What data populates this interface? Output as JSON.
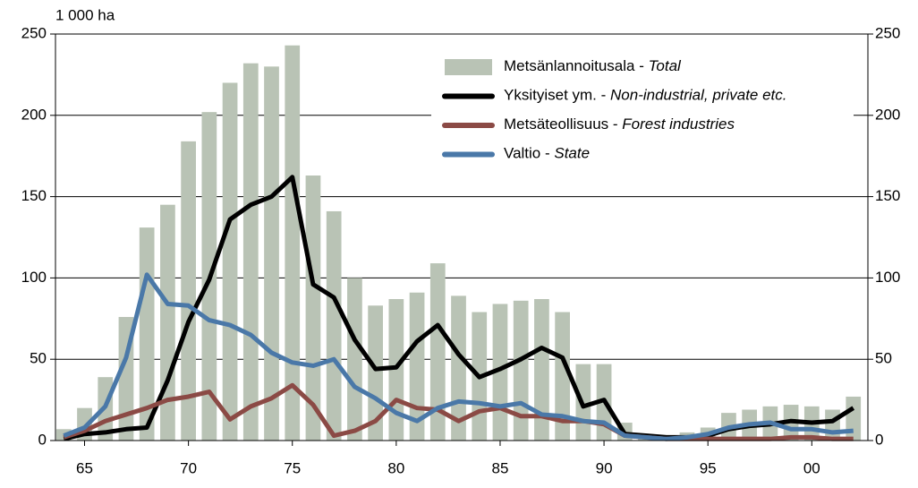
{
  "chart_data": {
    "type": "bar-line",
    "title": "1 000 ha",
    "x": [
      1964,
      1965,
      1966,
      1967,
      1968,
      1969,
      1970,
      1971,
      1972,
      1973,
      1974,
      1975,
      1976,
      1977,
      1978,
      1979,
      1980,
      1981,
      1982,
      1983,
      1984,
      1985,
      1986,
      1987,
      1988,
      1989,
      1990,
      1991,
      1992,
      1993,
      1994,
      1995,
      1996,
      1997,
      1998,
      1999,
      2000,
      2001,
      2002
    ],
    "series": [
      {
        "name": "Metsänlannoitusala - Total",
        "type": "bar",
        "color": "#b9c3b5",
        "values": [
          7,
          20,
          39,
          76,
          131,
          145,
          184,
          202,
          220,
          232,
          230,
          243,
          163,
          141,
          100,
          83,
          87,
          91,
          109,
          89,
          79,
          84,
          86,
          87,
          79,
          47,
          47,
          11,
          3,
          2,
          5,
          8,
          17,
          19,
          21,
          22,
          21,
          19,
          27
        ]
      },
      {
        "name": "Yksityiset ym. - Non-industrial, private etc.",
        "type": "line",
        "color": "#000000",
        "values": [
          1,
          4,
          5,
          7,
          8,
          37,
          73,
          99,
          136,
          145,
          150,
          162,
          96,
          88,
          62,
          44,
          45,
          61,
          71,
          53,
          39,
          44,
          50,
          57,
          51,
          21,
          25,
          4,
          3,
          2,
          2,
          3,
          7,
          9,
          10,
          12,
          11,
          12,
          20
        ]
      },
      {
        "name": "Metsäteollisuus - Forest industries",
        "type": "line",
        "color": "#8b4a45",
        "values": [
          2,
          6,
          12,
          16,
          20,
          25,
          27,
          30,
          13,
          21,
          26,
          34,
          22,
          3,
          6,
          12,
          25,
          20,
          19,
          12,
          18,
          20,
          15,
          15,
          12,
          12,
          10,
          3,
          2,
          1,
          1,
          1,
          1,
          1,
          1,
          2,
          2,
          1,
          1
        ]
      },
      {
        "name": "Valtio - State",
        "type": "line",
        "color": "#4a78a8",
        "values": [
          3,
          8,
          21,
          51,
          102,
          84,
          83,
          74,
          71,
          65,
          54,
          48,
          46,
          50,
          33,
          26,
          17,
          12,
          20,
          24,
          23,
          21,
          23,
          16,
          15,
          12,
          11,
          3,
          2,
          1,
          2,
          4,
          8,
          10,
          11,
          7,
          7,
          5,
          6
        ]
      }
    ],
    "xlim": [
      1963.6,
      2002.7
    ],
    "xticks": [
      {
        "value": 1965,
        "label": "65"
      },
      {
        "value": 1970,
        "label": "70"
      },
      {
        "value": 1975,
        "label": "75"
      },
      {
        "value": 1980,
        "label": "80"
      },
      {
        "value": 1985,
        "label": "85"
      },
      {
        "value": 1990,
        "label": "90"
      },
      {
        "value": 1995,
        "label": "95"
      },
      {
        "value": 2000,
        "label": "00"
      }
    ],
    "ylim": [
      0,
      250
    ],
    "yticks": [
      0,
      50,
      100,
      150,
      200,
      250
    ],
    "grid": true
  }
}
